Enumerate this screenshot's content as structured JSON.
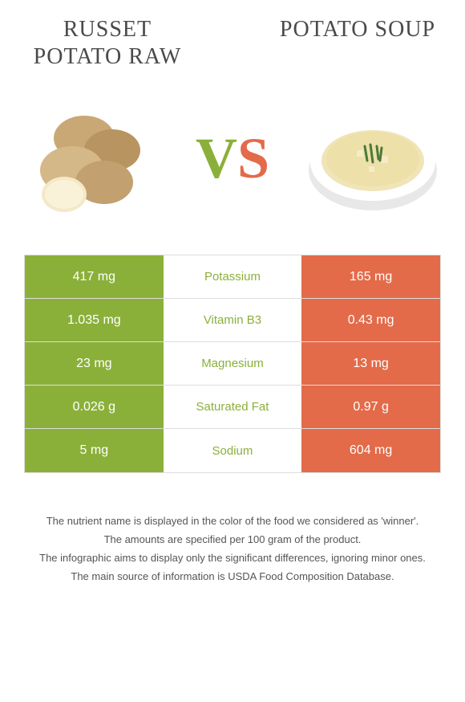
{
  "titles": {
    "left": "Russet potato raw",
    "right": "Potato soup"
  },
  "vs": {
    "v": "V",
    "s": "S"
  },
  "colors": {
    "left": "#8bb03a",
    "right": "#e36b4a",
    "winner_left_text": "#8bb03a",
    "winner_right_text": "#e36b4a",
    "table_border": "#dddddd",
    "background": "#ffffff",
    "title_color": "#4a4a4a",
    "footnote_color": "#555555"
  },
  "typography": {
    "title_font": "Georgia, serif",
    "title_size": 28,
    "body_font": "Arial, sans-serif",
    "value_size": 16,
    "label_size": 15,
    "footnote_size": 13,
    "vs_size": 72
  },
  "rows": [
    {
      "left": "417 mg",
      "label": "Potassium",
      "right": "165 mg",
      "winner": "left"
    },
    {
      "left": "1.035 mg",
      "label": "Vitamin B3",
      "right": "0.43 mg",
      "winner": "left"
    },
    {
      "left": "23 mg",
      "label": "Magnesium",
      "right": "13 mg",
      "winner": "left"
    },
    {
      "left": "0.026 g",
      "label": "Saturated Fat",
      "right": "0.97 g",
      "winner": "left"
    },
    {
      "left": "5 mg",
      "label": "Sodium",
      "right": "604 mg",
      "winner": "left"
    }
  ],
  "footnotes": [
    "The nutrient name is displayed in the color of the food we considered as 'winner'.",
    "The amounts are specified per 100 gram of the product.",
    "The infographic aims to display only the significant differences, ignoring minor ones.",
    "The main source of information is USDA Food Composition Database."
  ],
  "images": {
    "left_alt": "russet-potatoes",
    "right_alt": "potato-soup-bowl"
  }
}
